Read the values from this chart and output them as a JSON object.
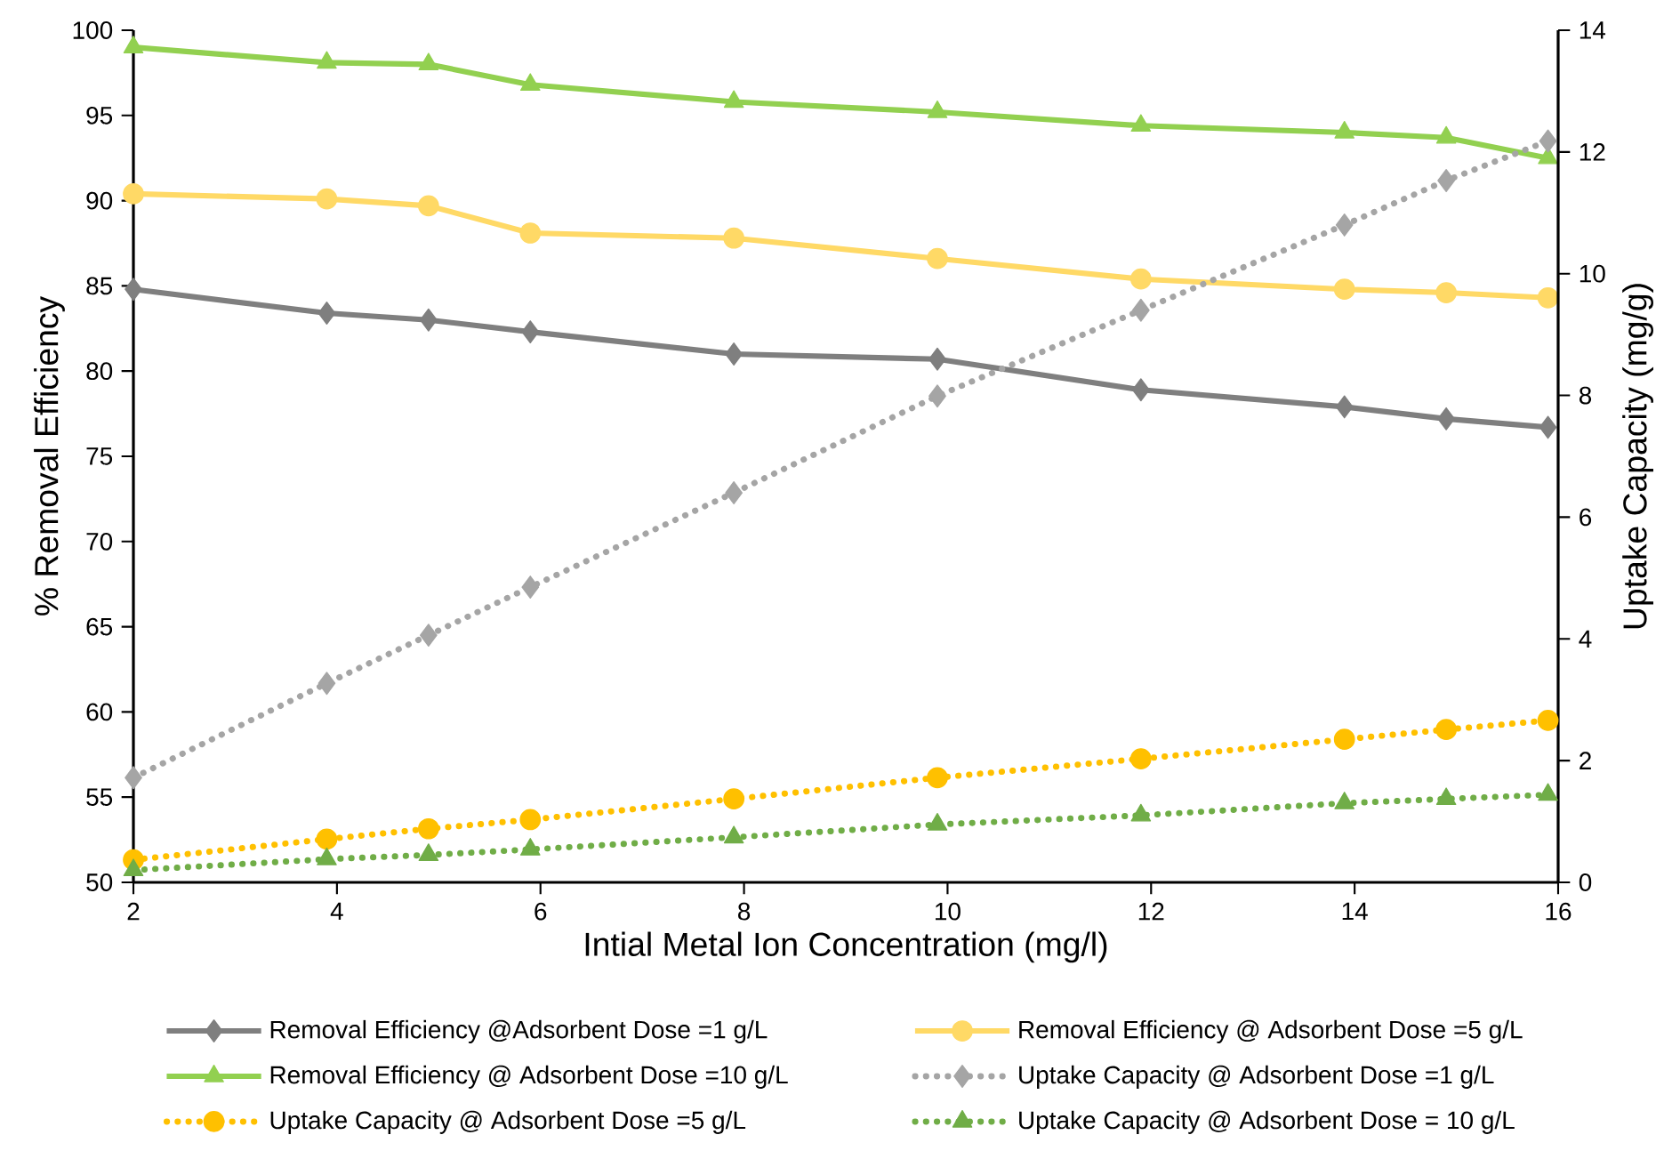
{
  "chart_data": {
    "type": "line",
    "xlabel": "Intial Metal Ion Concentration (mg/l)",
    "ylabel": "% Removal Efficiency",
    "y2label": "Uptake Capacity (mg/g)",
    "x": [
      2,
      3.9,
      4.9,
      5.9,
      7.9,
      9.9,
      11.9,
      13.9,
      14.9,
      15.9
    ],
    "xlim": [
      2,
      16
    ],
    "xticks": [
      2,
      4,
      6,
      8,
      10,
      12,
      14,
      16
    ],
    "ylim": [
      50,
      100
    ],
    "yticks": [
      50,
      55,
      60,
      65,
      70,
      75,
      80,
      85,
      90,
      95,
      100
    ],
    "y2lim": [
      0,
      14
    ],
    "y2ticks": [
      0,
      2,
      4,
      6,
      8,
      10,
      12,
      14
    ],
    "grid": false,
    "legend": "bottom",
    "series": [
      {
        "name": "Removal Efficiency @Adsorbent Dose =1 g/L",
        "color": "#7f7f7f",
        "marker": "diamond",
        "line_style": "solid",
        "values": [
          84.8,
          83.4,
          83.0,
          82.3,
          81.0,
          80.7,
          78.9,
          77.9,
          77.2,
          76.7
        ]
      },
      {
        "name": "Removal Efficiency @ Adsorbent Dose =5 g/L",
        "color": "#ffd966",
        "marker": "circle",
        "line_style": "solid",
        "values": [
          90.4,
          90.1,
          89.7,
          88.1,
          87.8,
          86.6,
          85.4,
          84.8,
          84.6,
          84.3
        ]
      },
      {
        "name": "Removal Efficiency @ Adsorbent Dose =10 g/L",
        "color": "#92d050",
        "marker": "triangle",
        "line_style": "solid",
        "values": [
          99.0,
          98.1,
          98.0,
          96.8,
          95.8,
          95.2,
          94.4,
          94.0,
          93.7,
          92.5
        ]
      },
      {
        "name": "Uptake Capacity @ Adsorbent Dose =1 g/L",
        "color": "#a5a5a5",
        "marker": "diamond",
        "line_style": "dotted",
        "axis": "y2",
        "values": [
          1.72,
          3.27,
          4.06,
          4.85,
          6.4,
          7.99,
          9.4,
          10.8,
          11.53,
          12.18
        ]
      },
      {
        "name": "Uptake Capacity @ Adsorbent Dose =5 g/L",
        "color": "#ffc000",
        "marker": "circle",
        "line_style": "dotted",
        "axis": "y2",
        "values": [
          0.37,
          0.71,
          0.88,
          1.03,
          1.37,
          1.72,
          2.03,
          2.35,
          2.51,
          2.66
        ]
      },
      {
        "name": "Uptake Capacity @ Adsorbent Dose = 10 g/L",
        "color": "#70ad47",
        "marker": "triangle",
        "line_style": "dotted",
        "axis": "y2",
        "values": [
          0.2,
          0.38,
          0.45,
          0.54,
          0.74,
          0.95,
          1.1,
          1.3,
          1.37,
          1.44
        ]
      }
    ]
  }
}
